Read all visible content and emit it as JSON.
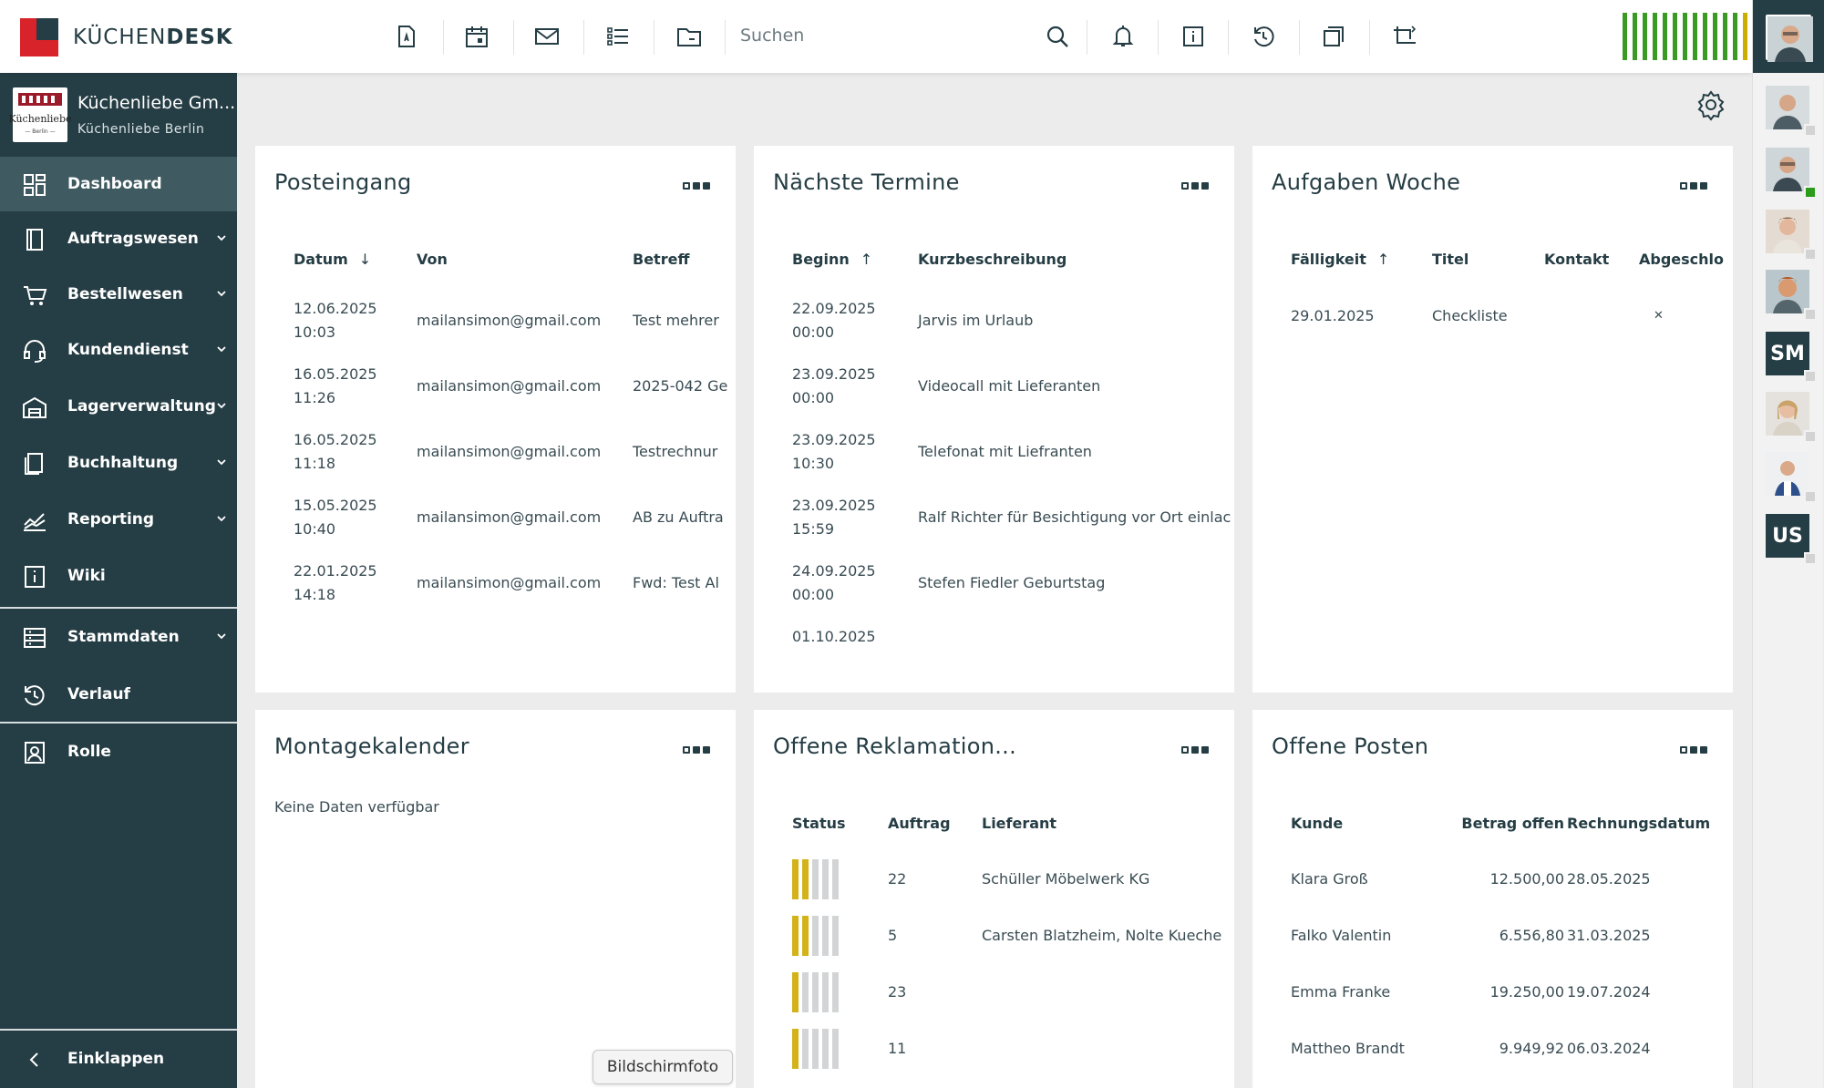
{
  "app": {
    "logo_text_light": "KÜCHEN",
    "logo_text_bold": "DESK",
    "search_placeholder": "Suchen",
    "brand_red": "#d9232a",
    "brand_dark": "#253d44"
  },
  "topbar": {
    "icons": [
      "document-icon",
      "calendar-icon",
      "mail-icon",
      "list-icon",
      "folder-icon"
    ],
    "right_icons": [
      "search-icon",
      "bell-icon",
      "info-icon",
      "history-icon",
      "window-icon",
      "crop-rotate-icon"
    ],
    "status_bars": {
      "green_count": 12,
      "yellow_count": 1
    }
  },
  "company": {
    "name": "Küchenliebe Gm...",
    "location": "Küchenliebe Berlin",
    "logo_label": "Küchenliebe",
    "logo_sub": "— Berlin —"
  },
  "sidebar": {
    "items": [
      {
        "label": "Dashboard",
        "icon": "dashboard-icon",
        "active": true,
        "chevron": false
      },
      {
        "label": "Auftragswesen",
        "icon": "order-book-icon",
        "chevron": true
      },
      {
        "label": "Bestellwesen",
        "icon": "cart-icon",
        "chevron": true
      },
      {
        "label": "Kundendienst",
        "icon": "headset-icon",
        "chevron": true
      },
      {
        "label": "Lagerverwaltung",
        "icon": "warehouse-icon",
        "chevron": true
      },
      {
        "label": "Buchhaltung",
        "icon": "ledger-icon",
        "chevron": true
      },
      {
        "label": "Reporting",
        "icon": "chart-line-icon",
        "chevron": true
      },
      {
        "label": "Wiki",
        "icon": "info-box-icon",
        "chevron": false
      },
      {
        "label": "Stammdaten",
        "icon": "database-icon",
        "chevron": true
      },
      {
        "label": "Verlauf",
        "icon": "history-icon",
        "chevron": false
      },
      {
        "label": "Rolle",
        "icon": "user-badge-icon",
        "chevron": false
      }
    ],
    "collapse_label": "Einklappen"
  },
  "users": {
    "initials": [
      "SM",
      "US"
    ]
  },
  "cards": {
    "posteingang": {
      "title": "Posteingang",
      "headers": [
        "Datum",
        "Von",
        "Betreff"
      ],
      "sort": "↓",
      "rows": [
        {
          "date": "12.06.2025",
          "time": "10:03",
          "from": "mailansimon@gmail.com",
          "subject": "Test mehrer"
        },
        {
          "date": "16.05.2025",
          "time": "11:26",
          "from": "mailansimon@gmail.com",
          "subject": "2025-042 Ge"
        },
        {
          "date": "16.05.2025",
          "time": "11:18",
          "from": "mailansimon@gmail.com",
          "subject": "Testrechnur"
        },
        {
          "date": "15.05.2025",
          "time": "10:40",
          "from": "mailansimon@gmail.com",
          "subject": "AB zu Auftra"
        },
        {
          "date": "22.01.2025",
          "time": "14:18",
          "from": "mailansimon@gmail.com",
          "subject": "Fwd: Test Al"
        }
      ]
    },
    "termine": {
      "title": "Nächste Termine",
      "headers": [
        "Beginn",
        "Kurzbeschreibung"
      ],
      "sort": "↑",
      "rows": [
        {
          "date": "22.09.2025",
          "time": "00:00",
          "desc": "Jarvis im Urlaub"
        },
        {
          "date": "23.09.2025",
          "time": "00:00",
          "desc": "Videocall mit Lieferanten"
        },
        {
          "date": "23.09.2025",
          "time": "10:30",
          "desc": "Telefonat mit Liefranten"
        },
        {
          "date": "23.09.2025",
          "time": "15:59",
          "desc": "Ralf Richter für Besichtigung vor Ort einlac"
        },
        {
          "date": "24.09.2025",
          "time": "00:00",
          "desc": "Stefen Fiedler Geburtstag"
        },
        {
          "date": "01.10.2025",
          "time": "",
          "desc": ""
        }
      ]
    },
    "aufgaben": {
      "title": "Aufgaben Woche",
      "headers": [
        "Fälligkeit",
        "Titel",
        "Kontakt",
        "Abgeschlo"
      ],
      "sort": "↑",
      "rows": [
        {
          "due": "29.01.2025",
          "title": "Checkliste",
          "contact": "",
          "done": "✕"
        }
      ]
    },
    "montage": {
      "title": "Montagekalender",
      "empty_text": "Keine Daten verfügbar"
    },
    "reklamation": {
      "title": "Offene Reklamation...",
      "headers": [
        "Status",
        "Auftrag",
        "Lieferant"
      ],
      "rows": [
        {
          "status_filled": 2,
          "status_total": 5,
          "order": "22",
          "supplier": "Schüller Möbelwerk KG"
        },
        {
          "status_filled": 2,
          "status_total": 5,
          "order": "5",
          "supplier": "Carsten Blatzheim, Nolte Kueche"
        },
        {
          "status_filled": 1,
          "status_total": 5,
          "order": "23",
          "supplier": ""
        },
        {
          "status_filled": 1,
          "status_total": 5,
          "order": "11",
          "supplier": ""
        }
      ]
    },
    "posten": {
      "title": "Offene Posten",
      "headers": [
        "Kunde",
        "Betrag offen",
        "Rechnungsdatum"
      ],
      "rows": [
        {
          "customer": "Klara Groß",
          "amount": "12.500,00",
          "date": "28.05.2025"
        },
        {
          "customer": "Falko Valentin",
          "amount": "6.556,80",
          "date": "31.03.2025"
        },
        {
          "customer": "Emma Franke",
          "amount": "19.250,00",
          "date": "19.07.2024"
        },
        {
          "customer": "Mattheo Brandt",
          "amount": "9.949,92",
          "date": "06.03.2024"
        }
      ]
    }
  },
  "tooltip": "Bildschirmfoto"
}
